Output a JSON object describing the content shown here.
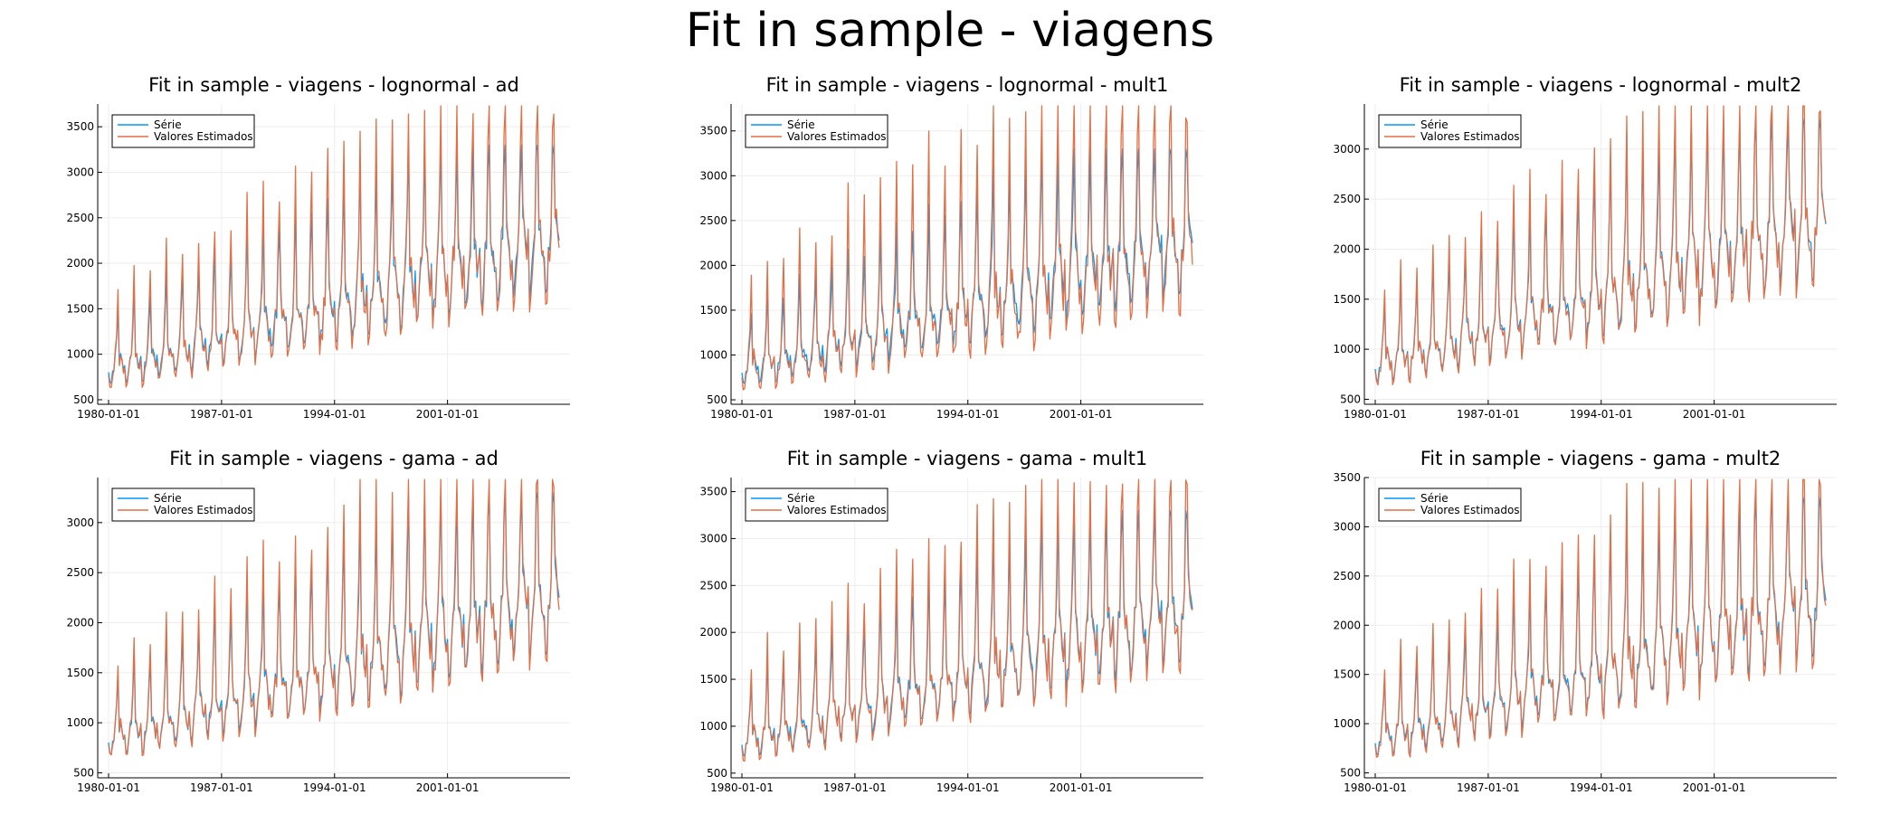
{
  "suptitle": "Fit in sample - viagens",
  "colors": {
    "serie": "#009AFA",
    "estimados": "#E26F46",
    "grid": "#EDEDED",
    "axis": "#000000"
  },
  "chart_data": [
    {
      "type": "line",
      "title": "Fit in sample - viagens - lognormal - ad",
      "xtick_labels": [
        "1980-01-01",
        "1987-01-01",
        "1994-01-01",
        "2001-01-01"
      ],
      "ylim": [
        450,
        3750
      ],
      "yticks": [
        500,
        1000,
        1500,
        2000,
        2500,
        3000,
        3500
      ],
      "legend": "top-left",
      "grid": true,
      "x_start": "1980-01",
      "x_end": "2007-12",
      "series": [
        {
          "name": "Série",
          "values": []
        },
        {
          "name": "Valores Estimados",
          "values": []
        }
      ]
    },
    {
      "type": "line",
      "title": "Fit in sample - viagens - lognormal - mult1",
      "xtick_labels": [
        "1980-01-01",
        "1987-01-01",
        "1994-01-01",
        "2001-01-01"
      ],
      "ylim": [
        450,
        3800
      ],
      "yticks": [
        500,
        1000,
        1500,
        2000,
        2500,
        3000,
        3500
      ],
      "legend": "top-left",
      "grid": true,
      "x_start": "1980-01",
      "x_end": "2007-12",
      "series": [
        {
          "name": "Série",
          "values": []
        },
        {
          "name": "Valores Estimados",
          "values": []
        }
      ]
    },
    {
      "type": "line",
      "title": "Fit in sample - viagens - lognormal - mult2",
      "xtick_labels": [
        "1980-01-01",
        "1987-01-01",
        "1994-01-01",
        "2001-01-01"
      ],
      "ylim": [
        450,
        3450
      ],
      "yticks": [
        500,
        1000,
        1500,
        2000,
        2500,
        3000
      ],
      "legend": "top-left",
      "grid": true,
      "x_start": "1980-01",
      "x_end": "2007-12",
      "series": [
        {
          "name": "Série",
          "values": []
        },
        {
          "name": "Valores Estimados",
          "values": []
        }
      ]
    },
    {
      "type": "line",
      "title": "Fit in sample - viagens - gama - ad",
      "xtick_labels": [
        "1980-01-01",
        "1987-01-01",
        "1994-01-01",
        "2001-01-01"
      ],
      "ylim": [
        450,
        3450
      ],
      "yticks": [
        500,
        1000,
        1500,
        2000,
        2500,
        3000
      ],
      "legend": "top-left",
      "grid": true,
      "x_start": "1980-01",
      "x_end": "2007-12",
      "series": [
        {
          "name": "Série",
          "values": []
        },
        {
          "name": "Valores Estimados",
          "values": []
        }
      ]
    },
    {
      "type": "line",
      "title": "Fit in sample - viagens - gama - mult1",
      "xtick_labels": [
        "1980-01-01",
        "1987-01-01",
        "1994-01-01",
        "2001-01-01"
      ],
      "ylim": [
        450,
        3650
      ],
      "yticks": [
        500,
        1000,
        1500,
        2000,
        2500,
        3000,
        3500
      ],
      "legend": "top-left",
      "grid": true,
      "x_start": "1980-01",
      "x_end": "2007-12",
      "series": [
        {
          "name": "Série",
          "values": []
        },
        {
          "name": "Valores Estimados",
          "values": []
        }
      ]
    },
    {
      "type": "line",
      "title": "Fit in sample - viagens - gama - mult2",
      "xtick_labels": [
        "1980-01-01",
        "1987-01-01",
        "1994-01-01",
        "2001-01-01"
      ],
      "ylim": [
        450,
        3500
      ],
      "yticks": [
        500,
        1000,
        1500,
        2000,
        2500,
        3000,
        3500
      ],
      "legend": "top-left",
      "grid": true,
      "x_start": "1980-01",
      "x_end": "2007-12",
      "series": [
        {
          "name": "Série",
          "values": []
        },
        {
          "name": "Valores Estimados",
          "values": []
        }
      ]
    }
  ]
}
